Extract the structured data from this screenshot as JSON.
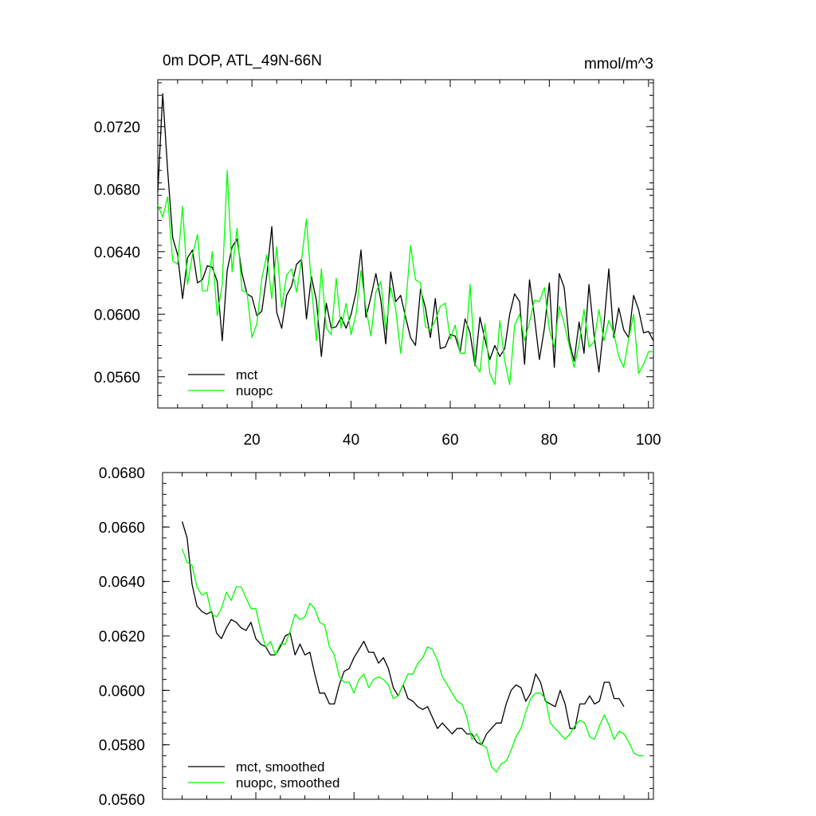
{
  "chart_data": [
    {
      "type": "line",
      "title": "0m DOP, ATL_49N-66N",
      "units_label": "mmol/m^3",
      "xlabel": "",
      "ylabel": "",
      "xlim": [
        1,
        101
      ],
      "ylim": [
        0.054,
        0.075
      ],
      "x_major_ticks": [
        20,
        40,
        60,
        80,
        100
      ],
      "x_tick_labels": [
        "20",
        "40",
        "60",
        "80",
        "100"
      ],
      "y_major_ticks": [
        0.056,
        0.06,
        0.064,
        0.068,
        0.072
      ],
      "y_tick_labels": [
        "0.0560",
        "0.0600",
        "0.0640",
        "0.0680",
        "0.0720"
      ],
      "legend_position": "bottom-left",
      "series": [
        {
          "name": "mct",
          "color": "#000000",
          "x_start": 1,
          "values": [
            0.0678,
            0.0741,
            0.0692,
            0.0649,
            0.0638,
            0.061,
            0.0636,
            0.0641,
            0.062,
            0.0622,
            0.0631,
            0.063,
            0.0621,
            0.0583,
            0.0628,
            0.0643,
            0.0648,
            0.0626,
            0.0613,
            0.0611,
            0.0599,
            0.0602,
            0.0625,
            0.0656,
            0.0601,
            0.0591,
            0.0612,
            0.0618,
            0.0632,
            0.0635,
            0.0597,
            0.0624,
            0.0609,
            0.0573,
            0.0607,
            0.0591,
            0.0592,
            0.0598,
            0.0591,
            0.06,
            0.0614,
            0.0641,
            0.0598,
            0.0611,
            0.0626,
            0.0609,
            0.0581,
            0.0627,
            0.0608,
            0.0612,
            0.0598,
            0.0585,
            0.058,
            0.0616,
            0.0604,
            0.0585,
            0.061,
            0.0578,
            0.0579,
            0.0587,
            0.0586,
            0.0576,
            0.0597,
            0.0588,
            0.0567,
            0.0598,
            0.0584,
            0.0571,
            0.058,
            0.0573,
            0.0578,
            0.06,
            0.0613,
            0.0608,
            0.0568,
            0.0622,
            0.0598,
            0.0571,
            0.0591,
            0.062,
            0.0566,
            0.0626,
            0.0617,
            0.0583,
            0.057,
            0.0595,
            0.0575,
            0.0619,
            0.0587,
            0.0563,
            0.0593,
            0.0629,
            0.0585,
            0.0604,
            0.059,
            0.0585,
            0.0612,
            0.0603,
            0.0588,
            0.0589,
            0.0583
          ]
        },
        {
          "name": "nuopc",
          "color": "#00ff00",
          "x_start": 1,
          "values": [
            0.067,
            0.0662,
            0.0675,
            0.0634,
            0.0632,
            0.0669,
            0.0619,
            0.0638,
            0.0651,
            0.0615,
            0.0615,
            0.064,
            0.0599,
            0.0619,
            0.0692,
            0.0627,
            0.0655,
            0.0615,
            0.0614,
            0.0585,
            0.0594,
            0.0623,
            0.0638,
            0.061,
            0.0643,
            0.0604,
            0.0625,
            0.0629,
            0.0614,
            0.0635,
            0.0661,
            0.0618,
            0.0583,
            0.0629,
            0.0591,
            0.0587,
            0.0623,
            0.0591,
            0.0607,
            0.0587,
            0.06,
            0.0628,
            0.0604,
            0.0586,
            0.0614,
            0.0621,
            0.059,
            0.0617,
            0.0603,
            0.0575,
            0.0605,
            0.0644,
            0.0622,
            0.062,
            0.0592,
            0.059,
            0.0596,
            0.0605,
            0.0607,
            0.0584,
            0.0593,
            0.0575,
            0.0575,
            0.0619,
            0.0568,
            0.0563,
            0.0594,
            0.0562,
            0.0555,
            0.0596,
            0.057,
            0.0555,
            0.0593,
            0.06,
            0.0583,
            0.0595,
            0.0609,
            0.0608,
            0.0617,
            0.059,
            0.0579,
            0.0605,
            0.0594,
            0.058,
            0.0566,
            0.0581,
            0.0603,
            0.0579,
            0.0582,
            0.0603,
            0.0583,
            0.0596,
            0.0588,
            0.0573,
            0.0566,
            0.0584,
            0.06,
            0.0562,
            0.0568,
            0.0576,
            0.0576
          ]
        }
      ]
    },
    {
      "type": "line",
      "title": "",
      "xlabel": "",
      "ylabel": "",
      "xlim": [
        1,
        101
      ],
      "ylim": [
        0.056,
        0.068
      ],
      "x_major_ticks": [
        20,
        40,
        60,
        80,
        100
      ],
      "y_major_ticks": [
        0.056,
        0.058,
        0.06,
        0.062,
        0.064,
        0.066,
        0.068
      ],
      "y_tick_labels": [
        "0.0560",
        "0.0580",
        "0.0600",
        "0.0620",
        "0.0640",
        "0.0660",
        "0.0680"
      ],
      "legend_position": "bottom-left",
      "series": [
        {
          "name": "mct, smoothed",
          "color": "#000000",
          "x_start": 5,
          "values": [
            0.0662,
            0.0656,
            0.0639,
            0.0631,
            0.0629,
            0.0628,
            0.0629,
            0.0621,
            0.0619,
            0.0623,
            0.0626,
            0.0625,
            0.0623,
            0.0622,
            0.0625,
            0.0619,
            0.0617,
            0.0616,
            0.0613,
            0.0613,
            0.0616,
            0.062,
            0.0621,
            0.0613,
            0.0617,
            0.0613,
            0.0614,
            0.0606,
            0.0599,
            0.0599,
            0.0595,
            0.0595,
            0.0602,
            0.0607,
            0.0608,
            0.0612,
            0.0615,
            0.0618,
            0.0614,
            0.0614,
            0.061,
            0.0612,
            0.0608,
            0.0601,
            0.0598,
            0.0602,
            0.0597,
            0.0596,
            0.0594,
            0.0593,
            0.0594,
            0.059,
            0.0586,
            0.0588,
            0.0586,
            0.0584,
            0.0586,
            0.0586,
            0.0584,
            0.0584,
            0.0581,
            0.058,
            0.0584,
            0.0586,
            0.0588,
            0.0588,
            0.0595,
            0.06,
            0.0602,
            0.0601,
            0.0596,
            0.0599,
            0.0606,
            0.0603,
            0.0596,
            0.0595,
            0.0594,
            0.06,
            0.0595,
            0.0586,
            0.0586,
            0.0595,
            0.0595,
            0.0598,
            0.0595,
            0.0596,
            0.0603,
            0.0603,
            0.0597,
            0.0597,
            0.0594
          ]
        },
        {
          "name": "nuopc, smoothed",
          "color": "#00ff00",
          "x_start": 5,
          "values": [
            0.0652,
            0.0647,
            0.0646,
            0.0638,
            0.0635,
            0.0636,
            0.0628,
            0.0627,
            0.063,
            0.0636,
            0.0633,
            0.0638,
            0.0638,
            0.0634,
            0.063,
            0.063,
            0.0622,
            0.0616,
            0.0618,
            0.0613,
            0.0617,
            0.0617,
            0.0622,
            0.0628,
            0.0626,
            0.0627,
            0.0632,
            0.063,
            0.0625,
            0.0624,
            0.0616,
            0.0613,
            0.0605,
            0.0603,
            0.0603,
            0.0599,
            0.0604,
            0.0606,
            0.0601,
            0.0604,
            0.0605,
            0.0604,
            0.0602,
            0.0597,
            0.0598,
            0.0602,
            0.0606,
            0.0606,
            0.061,
            0.0612,
            0.0616,
            0.0615,
            0.0611,
            0.0605,
            0.0602,
            0.0599,
            0.0596,
            0.0595,
            0.059,
            0.0582,
            0.0584,
            0.058,
            0.0579,
            0.0572,
            0.057,
            0.0573,
            0.0574,
            0.0578,
            0.0583,
            0.0586,
            0.0592,
            0.0597,
            0.0599,
            0.0599,
            0.0597,
            0.0588,
            0.0586,
            0.0584,
            0.0582,
            0.0584,
            0.0587,
            0.0589,
            0.0588,
            0.0583,
            0.0582,
            0.0587,
            0.0591,
            0.0587,
            0.0582,
            0.0585,
            0.0584,
            0.0581,
            0.0577,
            0.0576,
            0.0576
          ]
        }
      ]
    }
  ]
}
